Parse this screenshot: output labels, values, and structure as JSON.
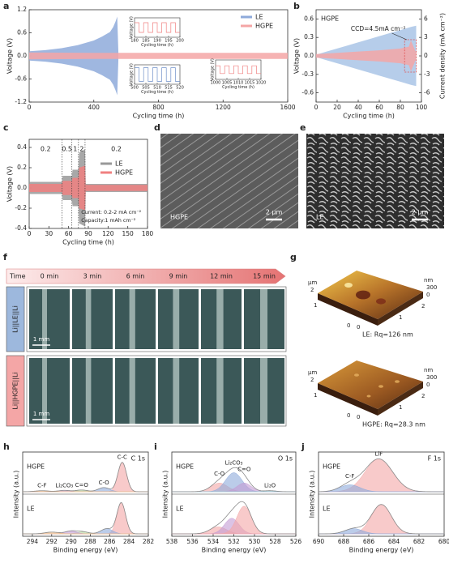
{
  "panels": [
    "a",
    "b",
    "c",
    "d",
    "e",
    "f",
    "g",
    "h",
    "i",
    "j"
  ],
  "chart_data": [
    {
      "type": "area",
      "xlabel": "Cycling time (h)",
      "ylabel": "Voltage (V)",
      "xlim": [
        0,
        1600
      ],
      "xticks": [
        0,
        400,
        800,
        1200,
        1600
      ],
      "ylim": [
        -1.2,
        1.2
      ],
      "yticks": [
        -1.2,
        -0.6,
        {
          "value": 0,
          "label": "0.0"
        },
        0.6,
        1.2
      ],
      "legend": "upper right",
      "series": [
        {
          "name": "LE",
          "color": "#8eaadb",
          "x": [
            0,
            100,
            200,
            300,
            400,
            450,
            500,
            520,
            535,
            545,
            552
          ],
          "values": [
            0.12,
            0.15,
            0.2,
            0.28,
            0.4,
            0.5,
            0.62,
            0.75,
            0.9,
            1.02,
            0.1
          ]
        },
        {
          "name": "HGPE",
          "color": "#f4a6a6",
          "x": [
            0,
            400,
            800,
            1200,
            1600
          ],
          "values": [
            0.09,
            0.08,
            0.08,
            0.08,
            0.08
          ]
        }
      ],
      "insets": [
        {
          "xlim": [
            180,
            200
          ],
          "xticks": [
            180,
            185,
            190,
            195,
            200
          ],
          "ylim": [
            -0.1,
            0.1
          ],
          "xlabel": "Cycling time (h)",
          "ylabel": "Voltage (V)",
          "color": "#f08080",
          "x": [
            180,
            182,
            184,
            186,
            188,
            190,
            192,
            194,
            196,
            198
          ],
          "values": [
            0.05,
            -0.05,
            0.05,
            -0.05,
            0.05,
            -0.05,
            0.05,
            -0.05,
            0.05,
            -0.05
          ]
        },
        {
          "xlim": [
            500,
            520
          ],
          "xticks": [
            500,
            505,
            510,
            515,
            520
          ],
          "ylim": [
            -0.1,
            0.1
          ],
          "xlabel": "Cycling time (h)",
          "ylabel": "Voltage (V)",
          "color": "#6f8fc8",
          "x": [
            500,
            502,
            504,
            506,
            508,
            510,
            512,
            514,
            516,
            518
          ],
          "values": [
            0.07,
            -0.07,
            0.07,
            -0.07,
            0.07,
            -0.07,
            0.07,
            -0.07,
            0.07,
            -0.07
          ]
        },
        {
          "xlim": [
            1000,
            1020
          ],
          "xticks": [
            1000,
            1005,
            1010,
            1015,
            1020
          ],
          "ylim": [
            -0.1,
            0.1
          ],
          "xlabel": "Cycling time (h)",
          "ylabel": "Voltage (V)",
          "color": "#f08080",
          "x": [
            1000,
            1002,
            1004,
            1006,
            1008,
            1010,
            1012,
            1014,
            1016,
            1018
          ],
          "values": [
            0.04,
            -0.04,
            0.04,
            -0.04,
            0.04,
            -0.04,
            0.04,
            -0.04,
            0.04,
            -0.04
          ]
        }
      ]
    },
    {
      "type": "area",
      "label": "HGPE",
      "annotation": "CCD=4.5mA cm⁻²",
      "xlabel": "Cycling time (h)",
      "ylabel": "Voltage (V)",
      "y2label": "Current density (mA cm⁻²)",
      "xlim": [
        0,
        100
      ],
      "xticks": [
        0,
        20,
        40,
        60,
        80,
        100
      ],
      "ylim": [
        -0.75,
        0.75
      ],
      "yticks": [
        -0.6,
        -0.3,
        {
          "value": 0,
          "label": "0.0"
        },
        0.3,
        0.6
      ],
      "y2lim": [
        -7.5,
        7.5
      ],
      "y2ticks": [
        -6,
        -3,
        0,
        3,
        6
      ],
      "ycolor": "#f08080",
      "y2color": "#6f9fd8",
      "series": [
        {
          "color": "#a9c4e6",
          "axis": "y2",
          "x": [
            0,
            10,
            20,
            30,
            40,
            50,
            60,
            70,
            80,
            90,
            95
          ],
          "values": [
            0.2,
            0.7,
            1.2,
            1.7,
            2.2,
            2.7,
            3.2,
            3.7,
            4.2,
            4.7,
            4.9
          ]
        },
        {
          "color": "#f4a6a6",
          "x": [
            0,
            20,
            40,
            60,
            80,
            88,
            90,
            95
          ],
          "values": [
            0.03,
            0.05,
            0.07,
            0.09,
            0.12,
            0.15,
            0.25,
            0.05
          ]
        }
      ]
    },
    {
      "type": "area",
      "xlabel": "Cycling time (h)",
      "ylabel": "Voltage (V)",
      "xlim": [
        0,
        180
      ],
      "xticks": [
        0,
        30,
        60,
        90,
        120,
        150,
        180
      ],
      "ylim": [
        -0.4,
        0.48
      ],
      "yticks": [
        -0.4,
        -0.2,
        {
          "value": 0,
          "label": "0.0"
        },
        0.2,
        0.4
      ],
      "legend": "center right",
      "rates": [
        0.2,
        0.5,
        1,
        2,
        0.2
      ],
      "rate_edges": [
        50,
        65,
        75,
        85
      ],
      "notes": [
        "Current: 0.2-2 mA cm⁻²",
        "Capacity:1 mAh cm⁻²"
      ],
      "series": [
        {
          "name": "LE",
          "color": "#999999",
          "x": [
            0,
            50,
            51,
            65,
            66,
            75,
            76,
            85,
            86,
            180
          ],
          "values": [
            0.06,
            0.06,
            0.12,
            0.12,
            0.18,
            0.18,
            0.35,
            0.38,
            0.04,
            0.04
          ]
        },
        {
          "name": "HGPE",
          "color": "#f08080",
          "x": [
            0,
            50,
            51,
            65,
            66,
            75,
            76,
            85,
            86,
            180
          ],
          "values": [
            0.04,
            0.04,
            0.07,
            0.07,
            0.1,
            0.1,
            0.2,
            0.22,
            0.03,
            0.03
          ]
        }
      ]
    },
    {
      "type": "spectrum",
      "element": "C 1s",
      "xlabel": "Binding energy (eV)",
      "ylabel": "Intensity (a.u.)",
      "xlim": [
        295,
        282
      ],
      "xticks": [
        294,
        292,
        290,
        288,
        286,
        284,
        282
      ],
      "series": [
        {
          "name": "HGPE",
          "color": "#f08080",
          "peaks": [
            {
              "label": "C-C",
              "center": 284.7,
              "height": 0.85,
              "width": 0.45,
              "color": "#f4a6a6"
            },
            {
              "label": "C-O",
              "center": 286.6,
              "height": 0.12,
              "width": 0.6,
              "color": "#8eaadb"
            },
            {
              "label": "C=O",
              "center": 288.9,
              "height": 0.05,
              "width": 0.6,
              "color": "#b5d99c"
            },
            {
              "label": "Li₂CO₃",
              "center": 290.7,
              "height": 0.04,
              "width": 0.6,
              "color": "#c39bd3"
            },
            {
              "label": "C-F",
              "center": 293,
              "height": 0.03,
              "width": 0.7,
              "color": "#f5c28a"
            }
          ]
        },
        {
          "name": "LE",
          "color": "#6f8fc8",
          "peaks": [
            {
              "center": 284.8,
              "height": 0.9,
              "width": 0.45,
              "color": "#f4a6a6"
            },
            {
              "center": 286.3,
              "height": 0.15,
              "width": 0.6,
              "color": "#8eaadb"
            },
            {
              "center": 288.8,
              "height": 0.06,
              "width": 0.6,
              "color": "#b5d99c"
            },
            {
              "center": 290,
              "height": 0.08,
              "width": 0.6,
              "color": "#c39bd3"
            },
            {
              "center": 292,
              "height": 0.05,
              "width": 0.7,
              "color": "#f5c28a"
            }
          ]
        }
      ]
    },
    {
      "type": "spectrum",
      "element": "O 1s",
      "xlabel": "Binding energy (eV)",
      "ylabel": "Intensity (a.u.)",
      "xlim": [
        538,
        526
      ],
      "xticks": [
        538,
        536,
        534,
        532,
        530,
        528,
        526
      ],
      "series": [
        {
          "name": "HGPE",
          "color": "#f08080",
          "peaks": [
            {
              "label": "C-O",
              "center": 533.4,
              "height": 0.25,
              "width": 0.8,
              "color": "#f4a6a6"
            },
            {
              "label": "Li₂CO₃",
              "center": 532,
              "height": 0.55,
              "width": 0.8,
              "color": "#8eaadb"
            },
            {
              "label": "C=O",
              "center": 531,
              "height": 0.25,
              "width": 0.7,
              "color": "#c39bd3"
            },
            {
              "label": "Li₂O",
              "center": 528.5,
              "height": 0.03,
              "width": 0.6,
              "color": "#9fd3d6"
            }
          ]
        },
        {
          "name": "LE",
          "color": "#6f8fc8",
          "peaks": [
            {
              "center": 533.5,
              "height": 0.2,
              "width": 0.8,
              "color": "#f4a6a6"
            },
            {
              "center": 532.2,
              "height": 0.45,
              "width": 0.7,
              "color": "#c39bd3"
            },
            {
              "center": 531,
              "height": 0.8,
              "width": 0.7,
              "color": "#f4a6a6"
            }
          ]
        }
      ]
    },
    {
      "type": "spectrum",
      "element": "F 1s",
      "xlabel": "Binding energy (eV)",
      "ylabel": "Intensity (a.u.)",
      "xlim": [
        690,
        680
      ],
      "xticks": [
        690,
        688,
        686,
        684,
        682,
        680
      ],
      "series": [
        {
          "name": "HGPE",
          "color": "#f08080",
          "peaks": [
            {
              "label": "LiF",
              "center": 685.2,
              "height": 0.95,
              "width": 1.1,
              "color": "#f4a6a6"
            },
            {
              "label": "C-F",
              "center": 687.5,
              "height": 0.2,
              "width": 0.8,
              "color": "#8eaadb"
            }
          ]
        },
        {
          "name": "LE",
          "color": "#6f8fc8",
          "peaks": [
            {
              "center": 685,
              "height": 0.85,
              "width": 0.8,
              "color": "#f4a6a6"
            },
            {
              "center": 687.2,
              "height": 0.15,
              "width": 0.7,
              "color": "#8eaadb"
            }
          ]
        }
      ]
    }
  ],
  "sem": [
    {
      "label": "HGPE",
      "scale": "2 μm"
    },
    {
      "label": "LE",
      "scale": "2 μm"
    }
  ],
  "optical": {
    "axis": "Time",
    "times": [
      "0 min",
      "3 min",
      "6 min",
      "9 min",
      "12 min",
      "15 min"
    ],
    "rows": [
      {
        "label": "Li||LE||Li",
        "scale": "1 mm"
      },
      {
        "label": "Li||HGPE||Li",
        "scale": "1 mm"
      }
    ]
  },
  "afm": [
    {
      "xy_unit": "μm",
      "z_unit": "nm",
      "y_ticks": [
        2,
        1,
        0
      ],
      "x_ticks": [
        0,
        1,
        2
      ],
      "z_ticks": [
        300,
        0
      ],
      "caption": "LE: Rq=126 nm"
    },
    {
      "xy_unit": "μm",
      "z_unit": "nm",
      "y_ticks": [
        2,
        1,
        0
      ],
      "x_ticks": [
        0,
        1,
        2
      ],
      "z_ticks": [
        300,
        0
      ],
      "caption": "HGPE: Rq=28.3 nm"
    }
  ]
}
